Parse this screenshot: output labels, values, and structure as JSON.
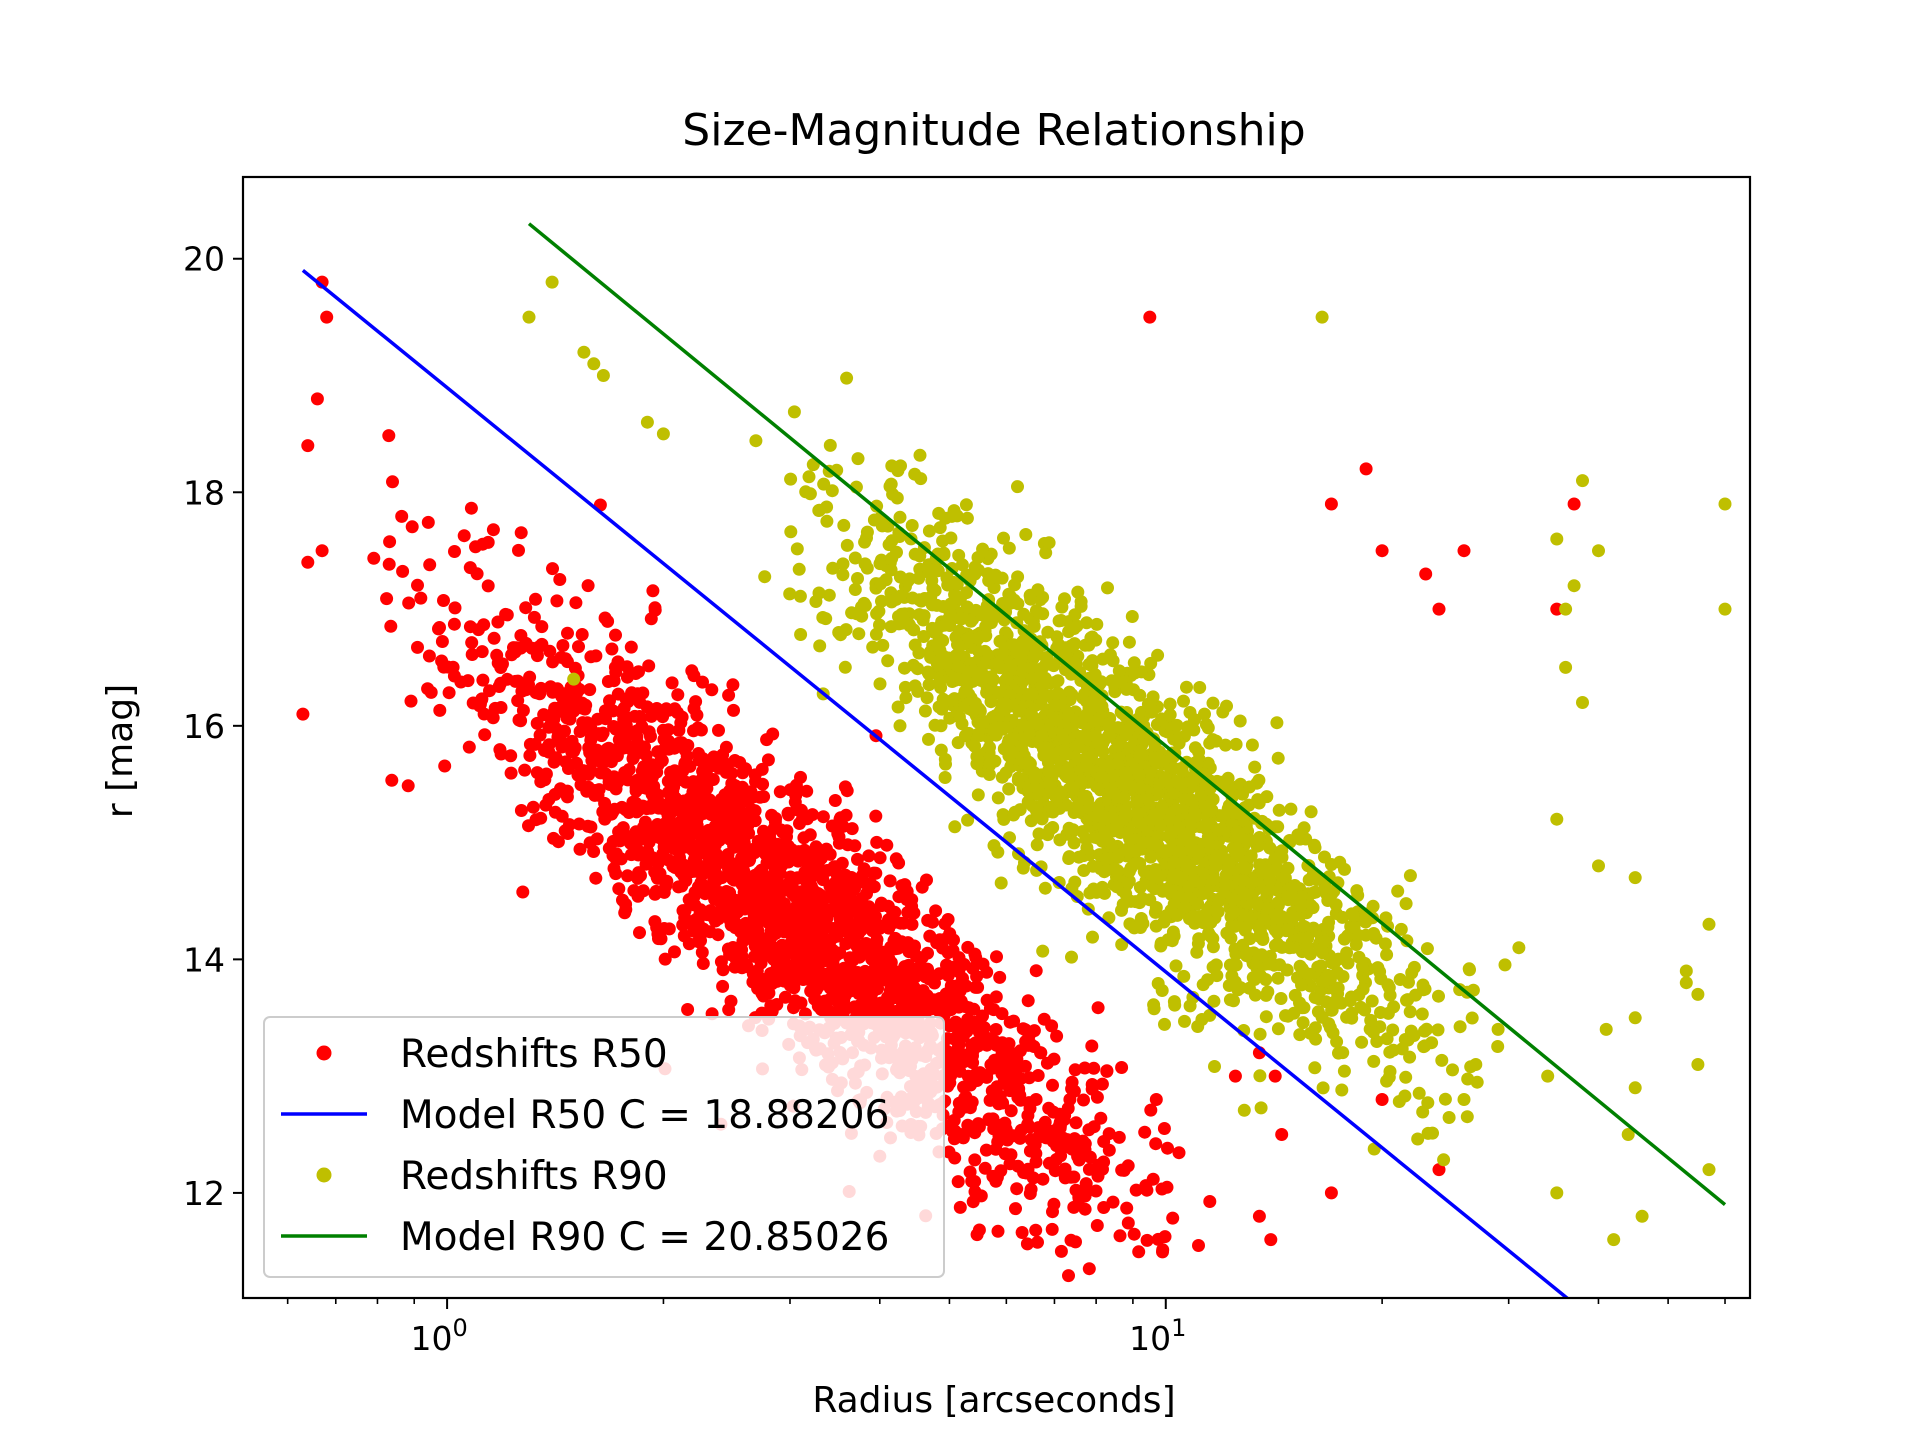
{
  "chart_data": {
    "type": "scatter",
    "title": "Size-Magnitude Relationship",
    "xlabel": "Radius [arcseconds]",
    "ylabel": "r [mag]",
    "xscale": "log",
    "xlim": [
      0.52,
      65
    ],
    "ylim": [
      11.1,
      20.7
    ],
    "xticks": [
      {
        "base": "10",
        "exp": "0",
        "value": 1
      },
      {
        "base": "10",
        "exp": "1",
        "value": 10
      }
    ],
    "yticks": [
      12,
      14,
      16,
      18,
      20
    ],
    "legend_position": "lower-left",
    "series": [
      {
        "name": "Redshifts R50",
        "kind": "points",
        "color": "#ff0000",
        "cluster": {
          "count": 2200,
          "x_range": [
            0.65,
            14
          ],
          "slope": -5.0,
          "intercept": 16.8,
          "y_spread": 1.0
        },
        "points": [
          [
            0.67,
            19.8
          ],
          [
            0.68,
            19.5
          ],
          [
            0.64,
            18.4
          ],
          [
            0.66,
            18.8
          ],
          [
            0.63,
            16.1
          ],
          [
            0.64,
            17.4
          ],
          [
            0.67,
            17.5
          ],
          [
            9.5,
            19.5
          ],
          [
            17,
            17.9
          ],
          [
            19,
            18.2
          ],
          [
            20,
            17.5
          ],
          [
            23,
            17.3
          ],
          [
            26,
            17.5
          ],
          [
            37,
            17.9
          ],
          [
            24,
            17.0
          ],
          [
            35,
            17.0
          ],
          [
            9.7,
            12.8
          ],
          [
            7.5,
            12.6
          ],
          [
            6.6,
            12.8
          ],
          [
            13.5,
            11.8
          ],
          [
            14,
            11.6
          ],
          [
            14.5,
            12.5
          ],
          [
            17,
            12.0
          ],
          [
            20,
            12.8
          ],
          [
            24,
            12.2
          ],
          [
            12.5,
            13.0
          ],
          [
            13.5,
            13.2
          ],
          [
            14.2,
            13.0
          ]
        ]
      },
      {
        "name": "Model R50 C = 18.88206",
        "kind": "line",
        "color": "#0000ff",
        "x": [
          0.63,
          37
        ],
        "y": [
          19.9,
          11.05
        ]
      },
      {
        "name": "Redshifts R90",
        "kind": "points",
        "color": "#bfbf00",
        "cluster": {
          "count": 2200,
          "x_range": [
            2.4,
            34
          ],
          "slope": -5.0,
          "intercept": 20.2,
          "y_spread": 1.0
        },
        "points": [
          [
            1.4,
            19.8
          ],
          [
            1.3,
            19.5
          ],
          [
            1.55,
            19.2
          ],
          [
            1.6,
            19.1
          ],
          [
            1.65,
            19.0
          ],
          [
            16.5,
            19.5
          ],
          [
            38,
            18.1
          ],
          [
            60,
            17.9
          ],
          [
            60,
            17.0
          ],
          [
            40,
            17.5
          ],
          [
            37,
            17.2
          ],
          [
            35,
            17.6
          ],
          [
            36,
            16.5
          ],
          [
            38,
            16.2
          ],
          [
            36,
            17.0
          ],
          [
            35,
            15.2
          ],
          [
            40,
            14.8
          ],
          [
            45,
            14.7
          ],
          [
            57,
            14.3
          ],
          [
            53,
            13.9
          ],
          [
            53,
            13.8
          ],
          [
            55,
            13.7
          ],
          [
            55,
            13.1
          ],
          [
            45,
            13.5
          ],
          [
            41,
            13.4
          ],
          [
            45,
            12.9
          ],
          [
            44,
            12.5
          ],
          [
            42,
            11.6
          ],
          [
            46,
            11.8
          ],
          [
            57,
            12.2
          ],
          [
            35,
            12.0
          ],
          [
            34,
            13.0
          ],
          [
            26,
            12.8
          ],
          [
            27,
            13.1
          ],
          [
            31,
            14.1
          ],
          [
            29,
            13.4
          ],
          [
            1.9,
            18.6
          ],
          [
            2.0,
            18.5
          ],
          [
            1.5,
            16.4
          ]
        ]
      },
      {
        "name": "Model R90 C = 20.85026",
        "kind": "line",
        "color": "#008000",
        "x": [
          1.3,
          60
        ],
        "y": [
          20.3,
          11.9
        ]
      }
    ]
  }
}
